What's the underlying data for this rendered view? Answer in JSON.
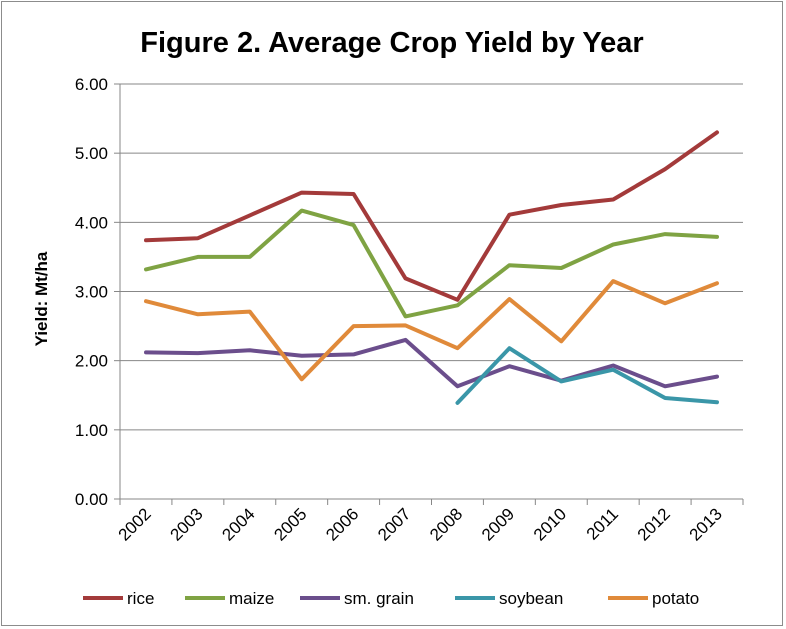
{
  "chart_data": {
    "type": "line",
    "title": "Figure 2. Average Crop Yield by Year",
    "xlabel": "",
    "ylabel": "Yield: Mt/ha",
    "categories": [
      "2002",
      "2003",
      "2004",
      "2005",
      "2006",
      "2007",
      "2008",
      "2009",
      "2010",
      "2011",
      "2012",
      "2013"
    ],
    "ylim": [
      0,
      6
    ],
    "yticks": [
      "0.00",
      "1.00",
      "2.00",
      "3.00",
      "4.00",
      "5.00",
      "6.00"
    ],
    "grid": true,
    "legend_position": "bottom",
    "series": [
      {
        "name": "rice",
        "color": "#a33a3a",
        "values": [
          3.74,
          3.77,
          4.1,
          4.43,
          4.41,
          3.19,
          2.88,
          4.11,
          4.25,
          4.33,
          4.77,
          5.3
        ]
      },
      {
        "name": "maize",
        "color": "#7fa343",
        "values": [
          3.32,
          3.5,
          3.5,
          4.17,
          3.96,
          2.64,
          2.8,
          3.38,
          3.34,
          3.68,
          3.83,
          3.79
        ]
      },
      {
        "name": "sm. grain",
        "color": "#6b4e8c",
        "values": [
          2.12,
          2.11,
          2.15,
          2.07,
          2.09,
          2.3,
          1.63,
          1.92,
          1.71,
          1.93,
          1.63,
          1.77
        ]
      },
      {
        "name": "soybean",
        "color": "#3a96a8",
        "values": [
          null,
          null,
          null,
          null,
          null,
          null,
          1.39,
          2.18,
          1.7,
          1.87,
          1.46,
          1.4
        ]
      },
      {
        "name": "potato",
        "color": "#e08a3a",
        "values": [
          2.86,
          2.67,
          2.71,
          1.73,
          2.5,
          2.51,
          2.18,
          2.89,
          2.28,
          3.15,
          2.83,
          3.12
        ]
      }
    ]
  }
}
